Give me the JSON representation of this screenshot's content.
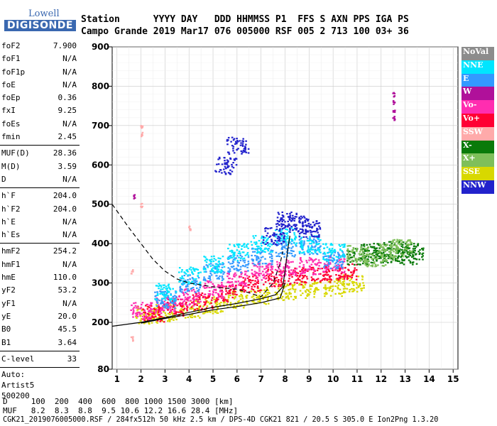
{
  "logo": {
    "top": "Lowell",
    "bottom": "DIGISONDE"
  },
  "header": {
    "line1": "Station      YYYY DAY   DDD HHMMSS P1  FFS S AXN PPS IGA PS",
    "line2": "Campo Grande 2019 Mar17 076 005000 RSF 005 2 713 100 03+ 36"
  },
  "params": [
    {
      "k": "foF2",
      "v": "7.900"
    },
    {
      "k": "foF1",
      "v": "N/A"
    },
    {
      "k": "foF1p",
      "v": "N/A"
    },
    {
      "k": "foE",
      "v": "N/A"
    },
    {
      "k": "foEp",
      "v": "0.36"
    },
    {
      "k": "fxI",
      "v": "9.25"
    },
    {
      "k": "foEs",
      "v": "N/A"
    },
    {
      "k": "fmin",
      "v": "2.45"
    },
    {
      "k": "MUF(D)",
      "v": "28.36"
    },
    {
      "k": "M(D)",
      "v": "3.59"
    },
    {
      "k": "D",
      "v": "N/A"
    },
    {
      "k": "h`F",
      "v": "204.0"
    },
    {
      "k": "h`F2",
      "v": "204.0"
    },
    {
      "k": "h`E",
      "v": "N/A"
    },
    {
      "k": "h`Es",
      "v": "N/A"
    },
    {
      "k": "hmF2",
      "v": "254.2"
    },
    {
      "k": "hmF1",
      "v": "N/A"
    },
    {
      "k": "hmE",
      "v": "110.0"
    },
    {
      "k": "yF2",
      "v": "53.2"
    },
    {
      "k": "yF1",
      "v": "N/A"
    },
    {
      "k": "yE",
      "v": "20.0"
    },
    {
      "k": "B0",
      "v": "45.5"
    },
    {
      "k": "B1",
      "v": "3.64"
    },
    {
      "k": "C-level",
      "v": "33"
    }
  ],
  "auto": [
    "Auto:",
    "Artist5",
    "500200"
  ],
  "legend": [
    {
      "label": "NoVal",
      "color": "#8c8c8c"
    },
    {
      "label": "NNE",
      "color": "#00e5ff"
    },
    {
      "label": "E",
      "color": "#3399ff"
    },
    {
      "label": "W",
      "color": "#b0109a"
    },
    {
      "label": "Vo-",
      "color": "#ff2db0"
    },
    {
      "label": "Vo+",
      "color": "#ff0033"
    },
    {
      "label": "SSW",
      "color": "#ffaaaa"
    },
    {
      "label": "X-",
      "color": "#0a7a0a"
    },
    {
      "label": "X+",
      "color": "#7fbf5a"
    },
    {
      "label": "SSE",
      "color": "#d8d800"
    },
    {
      "label": "NNW",
      "color": "#2222cc"
    }
  ],
  "footer": {
    "line1": "D     100  200  400  600  800 1000 1500 3000 [km]",
    "line2": "MUF   8.2  8.3  8.8  9.5 10.6 12.2 16.6 28.4 [MHz]",
    "line3": "CGK21_2019076005000.RSF / 284fx512h 50 kHz 2.5 km / DPS-4D CGK21 821 / 20.5 S 305.0 E Ion2Png 1.3.20"
  },
  "chart_data": {
    "type": "scatter",
    "x_ticks": [
      1,
      2,
      3,
      4,
      5,
      6,
      7,
      8,
      9,
      10,
      11,
      12,
      13,
      14,
      15
    ],
    "y_ticks": [
      80,
      200,
      300,
      400,
      500,
      600,
      700,
      800,
      900
    ],
    "xlim": [
      0.8,
      15.2
    ],
    "ylim": [
      80,
      900
    ],
    "grid": true,
    "legend_position": "right",
    "series": [
      {
        "name": "SSE",
        "points": [
          [
            2.2,
            220
          ],
          [
            3,
            225
          ],
          [
            4,
            235
          ],
          [
            5,
            245
          ],
          [
            6,
            260
          ],
          [
            7,
            270
          ],
          [
            8,
            280
          ],
          [
            9,
            285
          ],
          [
            10,
            290
          ],
          [
            10.8,
            300
          ]
        ]
      },
      {
        "name": "Vo+",
        "points": [
          [
            2.5,
            225
          ],
          [
            3.5,
            240
          ],
          [
            4.5,
            255
          ],
          [
            5.5,
            275
          ],
          [
            6.5,
            300
          ],
          [
            7.5,
            315
          ],
          [
            8.5,
            320
          ],
          [
            9.5,
            325
          ],
          [
            10.5,
            330
          ]
        ]
      },
      {
        "name": "Vo-",
        "points": [
          [
            2,
            230
          ],
          [
            3,
            245
          ],
          [
            4,
            265
          ],
          [
            5,
            285
          ],
          [
            6,
            310
          ],
          [
            7,
            330
          ],
          [
            8,
            340
          ],
          [
            9,
            345
          ],
          [
            10,
            350
          ]
        ]
      },
      {
        "name": "E",
        "points": [
          [
            3,
            260
          ],
          [
            4,
            300
          ],
          [
            5,
            330
          ],
          [
            6,
            350
          ],
          [
            7,
            370
          ],
          [
            8,
            390
          ],
          [
            9,
            395
          ],
          [
            10,
            360
          ]
        ]
      },
      {
        "name": "NNE",
        "points": [
          [
            3,
            280
          ],
          [
            4,
            320
          ],
          [
            5,
            350
          ],
          [
            6,
            380
          ],
          [
            7,
            400
          ],
          [
            8,
            420
          ],
          [
            9,
            400
          ],
          [
            10,
            380
          ]
        ]
      },
      {
        "name": "NNW",
        "points": [
          [
            7.5,
            420
          ],
          [
            8,
            460
          ],
          [
            8.5,
            450
          ],
          [
            9,
            440
          ],
          [
            5.5,
            600
          ],
          [
            6,
            650
          ]
        ]
      },
      {
        "name": "X-",
        "points": [
          [
            11,
            370
          ],
          [
            11.5,
            380
          ],
          [
            12,
            375
          ],
          [
            12.5,
            385
          ],
          [
            13,
            370
          ],
          [
            13.3,
            380
          ]
        ]
      },
      {
        "name": "X+",
        "points": [
          [
            11,
            375
          ],
          [
            11.7,
            365
          ],
          [
            12.3,
            380
          ],
          [
            12.8,
            390
          ]
        ]
      },
      {
        "name": "W",
        "points": [
          [
            12.5,
            780
          ],
          [
            12.5,
            760
          ],
          [
            12.5,
            740
          ],
          [
            12.5,
            720
          ],
          [
            1.7,
            520
          ]
        ]
      },
      {
        "name": "SSW",
        "points": [
          [
            2,
            700
          ],
          [
            2,
            680
          ],
          [
            2,
            500
          ],
          [
            1.6,
            330
          ],
          [
            1.6,
            160
          ],
          [
            4,
            440
          ]
        ]
      }
    ],
    "curves": [
      {
        "name": "profile-dashed",
        "points": [
          [
            0.8,
            500
          ],
          [
            1.5,
            440
          ],
          [
            2,
            400
          ],
          [
            2.5,
            360
          ],
          [
            3,
            330
          ],
          [
            3.5,
            310
          ],
          [
            4,
            300
          ],
          [
            4.5,
            295
          ],
          [
            5,
            290
          ],
          [
            5.5,
            287
          ],
          [
            6,
            284
          ],
          [
            6.5,
            275
          ],
          [
            7,
            265
          ],
          [
            7.5,
            300
          ],
          [
            7.8,
            350
          ],
          [
            7.9,
            380
          ]
        ]
      },
      {
        "name": "trace-solid",
        "points": [
          [
            0.8,
            190
          ],
          [
            2,
            200
          ],
          [
            3,
            212
          ],
          [
            4,
            225
          ],
          [
            5,
            238
          ],
          [
            6,
            248
          ],
          [
            7,
            260
          ],
          [
            7.6,
            270
          ],
          [
            7.9,
            290
          ],
          [
            8,
            330
          ],
          [
            8.1,
            380
          ],
          [
            8.2,
            420
          ]
        ]
      },
      {
        "name": "trace-lower",
        "points": [
          [
            2,
            198
          ],
          [
            3,
            210
          ],
          [
            4,
            220
          ],
          [
            5,
            232
          ],
          [
            6,
            240
          ],
          [
            7,
            250
          ],
          [
            7.8,
            262
          ],
          [
            8,
            300
          ]
        ]
      }
    ]
  }
}
